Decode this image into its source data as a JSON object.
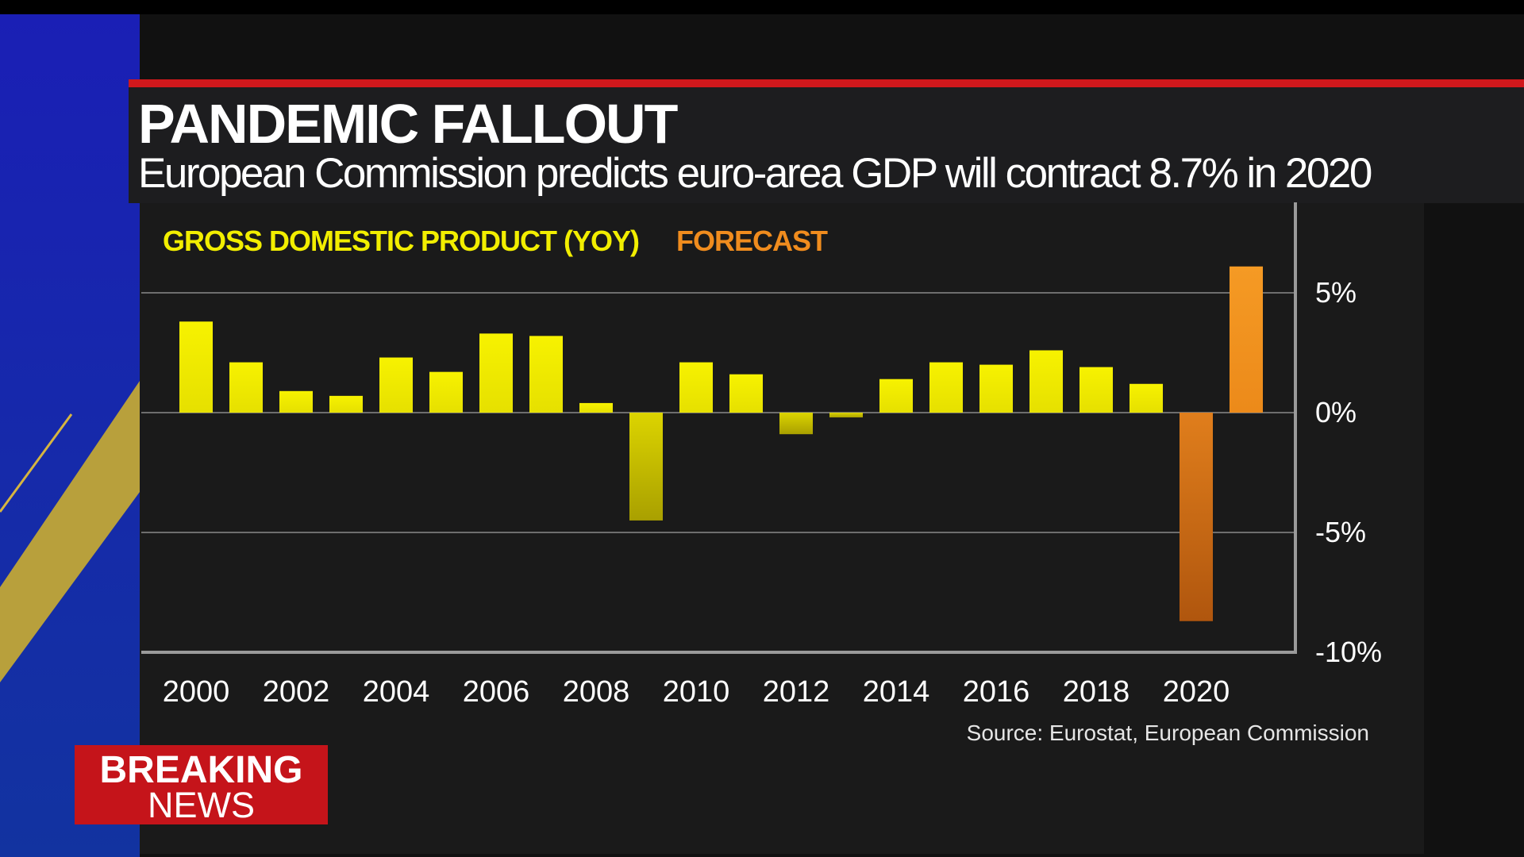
{
  "header": {
    "title": "PANDEMIC FALLOUT",
    "subtitle": "European Commission predicts euro-area GDP will contract 8.7% in 2020"
  },
  "chart_data": {
    "type": "bar",
    "legend": [
      {
        "label": "GROSS DOMESTIC PRODUCT (YOY)",
        "color": "#f2ee00"
      },
      {
        "label": "FORECAST",
        "color": "#f08c1e"
      }
    ],
    "categories": [
      "2000",
      "2001",
      "2002",
      "2003",
      "2004",
      "2005",
      "2006",
      "2007",
      "2008",
      "2009",
      "2010",
      "2011",
      "2012",
      "2013",
      "2014",
      "2015",
      "2016",
      "2017",
      "2018",
      "2019",
      "2020",
      "2021"
    ],
    "x_tick_labels": [
      "2000",
      "2002",
      "2004",
      "2006",
      "2008",
      "2010",
      "2012",
      "2014",
      "2016",
      "2018",
      "2020"
    ],
    "series": [
      {
        "name": "GROSS DOMESTIC PRODUCT (YOY)",
        "color": "#f2ee00",
        "values": [
          3.8,
          2.1,
          0.9,
          0.7,
          2.3,
          1.7,
          3.3,
          3.2,
          0.4,
          -4.5,
          2.1,
          1.6,
          -0.9,
          -0.2,
          1.4,
          2.1,
          2.0,
          2.6,
          1.9,
          1.2,
          null,
          null
        ]
      },
      {
        "name": "FORECAST",
        "color": "#f08c1e",
        "values": [
          null,
          null,
          null,
          null,
          null,
          null,
          null,
          null,
          null,
          null,
          null,
          null,
          null,
          null,
          null,
          null,
          null,
          null,
          null,
          null,
          -8.7,
          6.1
        ]
      }
    ],
    "y_ticks": [
      5,
      0,
      -5,
      -10
    ],
    "y_tick_labels": [
      "5%",
      "0%",
      "-5%",
      "-10%"
    ],
    "ylim": [
      -10,
      6.5
    ],
    "grid": true,
    "y_axis_side": "right",
    "legend_placement": "top-left"
  },
  "source": "Source: Eurostat, European Commission",
  "breaking": {
    "line1": "BREAKING",
    "line2": "NEWS"
  },
  "colors": {
    "accent_red": "#d0181c",
    "brand_blue": "#1a22a8",
    "gold_stripe": "#b8a03c"
  }
}
